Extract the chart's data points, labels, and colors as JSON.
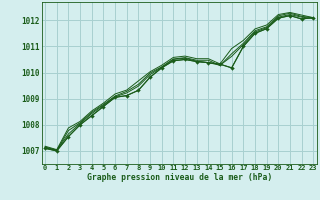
{
  "xlabel": "Graphe pression niveau de la mer (hPa)",
  "background_color": "#d4eeee",
  "grid_color": "#a8d0d0",
  "line_color": "#1a5c1a",
  "x_ticks": [
    0,
    1,
    2,
    3,
    4,
    5,
    6,
    7,
    8,
    9,
    10,
    11,
    12,
    13,
    14,
    15,
    16,
    17,
    18,
    19,
    20,
    21,
    22,
    23
  ],
  "y_ticks": [
    1007,
    1008,
    1009,
    1010,
    1011,
    1012
  ],
  "ylim": [
    1006.5,
    1012.7
  ],
  "xlim": [
    -0.3,
    23.3
  ],
  "series": [
    [
      1007.1,
      1007.0,
      1007.55,
      1008.0,
      1008.35,
      1008.7,
      1009.05,
      1009.12,
      1009.32,
      1009.82,
      1010.18,
      1010.45,
      1010.5,
      1010.42,
      1010.38,
      1010.32,
      1010.18,
      1011.0,
      1011.5,
      1011.68,
      1012.08,
      1012.18,
      1012.05,
      1012.1
    ],
    [
      1007.12,
      1007.02,
      1007.78,
      1008.08,
      1008.48,
      1008.78,
      1009.1,
      1009.28,
      1009.55,
      1009.98,
      1010.22,
      1010.52,
      1010.57,
      1010.47,
      1010.47,
      1010.27,
      1010.72,
      1011.12,
      1011.6,
      1011.75,
      1012.17,
      1012.27,
      1012.15,
      1012.1
    ],
    [
      1007.18,
      1007.05,
      1007.88,
      1008.13,
      1008.53,
      1008.83,
      1009.18,
      1009.33,
      1009.68,
      1010.03,
      1010.28,
      1010.58,
      1010.63,
      1010.53,
      1010.53,
      1010.33,
      1010.92,
      1011.23,
      1011.67,
      1011.82,
      1012.22,
      1012.3,
      1012.2,
      1012.1
    ],
    [
      1007.15,
      1007.03,
      1007.65,
      1008.05,
      1008.43,
      1008.75,
      1009.07,
      1009.22,
      1009.48,
      1009.92,
      1010.2,
      1010.5,
      1010.55,
      1010.43,
      1010.38,
      1010.28,
      1010.62,
      1011.07,
      1011.55,
      1011.72,
      1012.12,
      1012.22,
      1012.12,
      1012.07
    ]
  ]
}
